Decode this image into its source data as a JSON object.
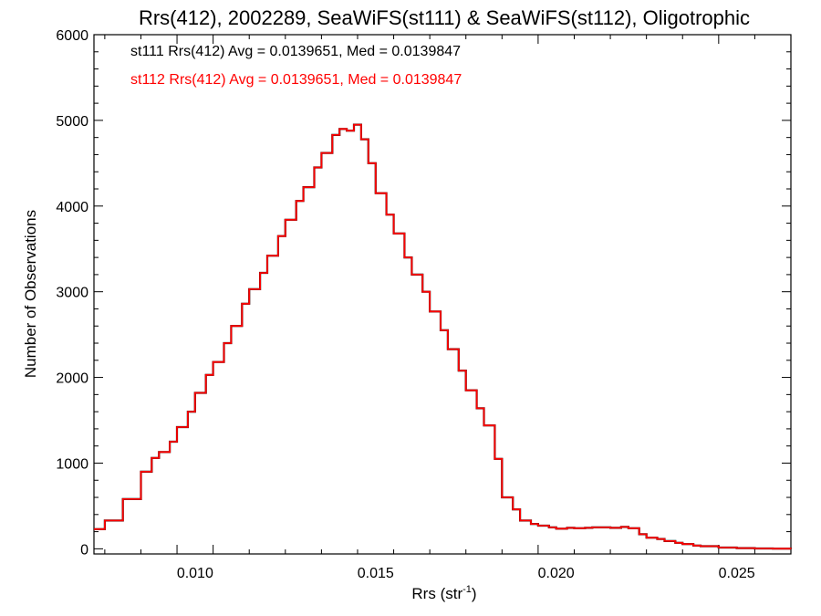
{
  "chart_data": {
    "type": "line",
    "title": "Rrs(412), 2002289, SeaWiFS(st111) & SeaWiFS(st112), Oligotrophic",
    "xlabel_main": "Rrs (str",
    "xlabel_sup": "-1",
    "xlabel_end": ")",
    "ylabel": "Number of Observations",
    "xlim": [
      0.0072,
      0.0265
    ],
    "ylim": [
      -60,
      6000
    ],
    "x_major_ticks": [
      0.01,
      0.015,
      0.02,
      0.025
    ],
    "x_tick_labels": [
      "0.010",
      "0.015",
      "0.020",
      "0.025"
    ],
    "y_major_ticks": [
      0,
      1000,
      2000,
      3000,
      4000,
      5000,
      6000
    ],
    "y_tick_labels": [
      "0",
      "1000",
      "2000",
      "3000",
      "4000",
      "5000",
      "6000"
    ],
    "grid": false,
    "annotations": [
      {
        "text": "st111 Rrs(412) Avg = 0.0139651, Med = 0.0139847",
        "color": "#000000"
      },
      {
        "text": "st112 Rrs(412) Avg = 0.0139651, Med = 0.0139847",
        "color": "#ff0000"
      }
    ],
    "series": [
      {
        "color": "#000000"
      },
      {
        "color": "#ff0000"
      }
    ],
    "x": [
      0.0072,
      0.0075,
      0.008,
      0.0085,
      0.0088,
      0.009,
      0.0093,
      0.0095,
      0.0098,
      0.01,
      0.0103,
      0.0105,
      0.0108,
      0.011,
      0.0113,
      0.0115,
      0.0118,
      0.012,
      0.0123,
      0.0125,
      0.0128,
      0.013,
      0.0133,
      0.0135,
      0.0138,
      0.014,
      0.0142,
      0.0144,
      0.0146,
      0.0148,
      0.015,
      0.0153,
      0.0155,
      0.0158,
      0.016,
      0.0163,
      0.0165,
      0.0168,
      0.017,
      0.0173,
      0.0175,
      0.0178,
      0.018,
      0.0183,
      0.0185,
      0.0188,
      0.019,
      0.0193,
      0.0195,
      0.0198,
      0.02,
      0.0203,
      0.0205,
      0.0208,
      0.021,
      0.0213,
      0.0215,
      0.0218,
      0.022,
      0.0223,
      0.0225,
      0.0228,
      0.023,
      0.0233,
      0.0235,
      0.0238,
      0.024,
      0.0245,
      0.025,
      0.0255,
      0.026,
      0.0265
    ],
    "y": [
      230,
      330,
      580,
      900,
      1060,
      1130,
      1250,
      1420,
      1600,
      1820,
      2030,
      2180,
      2400,
      2600,
      2860,
      3030,
      3220,
      3420,
      3650,
      3840,
      4060,
      4220,
      4450,
      4620,
      4830,
      4900,
      4880,
      4950,
      4780,
      4500,
      4150,
      3900,
      3680,
      3400,
      3200,
      3000,
      2770,
      2550,
      2330,
      2080,
      1850,
      1640,
      1440,
      1050,
      600,
      460,
      330,
      290,
      270,
      250,
      235,
      245,
      240,
      245,
      250,
      250,
      245,
      255,
      240,
      170,
      130,
      115,
      90,
      70,
      55,
      38,
      30,
      15,
      8,
      4,
      2,
      0
    ]
  }
}
